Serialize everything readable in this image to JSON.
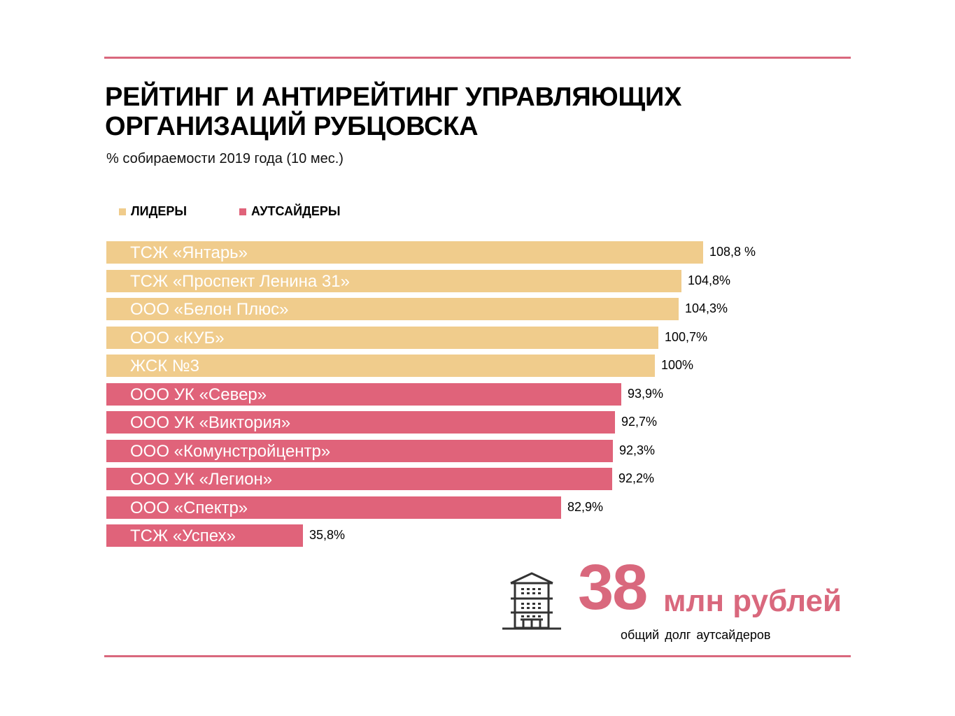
{
  "header": {
    "title_line1": "РЕЙТИНГ И АНТИРЕЙТИНГ УПРАВЛЯЮЩИХ",
    "title_line2": "ОРГАНИЗАЦИЙ РУБЦОВСКА",
    "subtitle": "% собираемости 2019 года (10 мес.)"
  },
  "colors": {
    "leaders": "#f0cc8c",
    "outsiders": "#e0637a",
    "accent": "#d9687d"
  },
  "legend": [
    {
      "label": "ЛИДЕРЫ",
      "group": "leaders"
    },
    {
      "label": "АУТСАЙДЕРЫ",
      "group": "outsiders"
    }
  ],
  "chart_data": {
    "type": "bar",
    "orientation": "horizontal",
    "title": "РЕЙТИНГ И АНТИРЕЙТИНГ УПРАВЛЯЮЩИХ ОРГАНИЗАЦИЙ РУБЦОВСКА",
    "subtitle": "% собираемости 2019 года (10 мес.)",
    "xlabel": "",
    "ylabel": "",
    "xlim": [
      0,
      108.8
    ],
    "grid": false,
    "legend_position": "top-left",
    "categories": [
      "ТСЖ «Янтарь»",
      "ТСЖ «Проспект Ленина 31»",
      "ООО «Белон Плюс»",
      "ООО «КУБ»",
      "ЖСК №3",
      "ООО УК «Север»",
      "ООО УК «Виктория»",
      "ООО «Комунстройцентр»",
      "ООО УК «Легион»",
      "ООО «Спектр»",
      "ТСЖ «Успех»"
    ],
    "values": [
      108.8,
      104.8,
      104.3,
      100.7,
      100,
      93.9,
      92.7,
      92.3,
      92.2,
      82.9,
      35.8
    ],
    "value_labels": [
      "108,8 %",
      "104,8%",
      "104,3%",
      "100,7%",
      "100%",
      "93,9%",
      "92,7%",
      "92,3%",
      "92,2%",
      "82,9%",
      "35,8%"
    ],
    "groups": [
      "leaders",
      "leaders",
      "leaders",
      "leaders",
      "leaders",
      "outsiders",
      "outsiders",
      "outsiders",
      "outsiders",
      "outsiders",
      "outsiders"
    ],
    "series": [
      {
        "name": "ЛИДЕРЫ",
        "indices": [
          0,
          1,
          2,
          3,
          4
        ]
      },
      {
        "name": "АУТСАЙДЕРЫ",
        "indices": [
          5,
          6,
          7,
          8,
          9,
          10
        ]
      }
    ]
  },
  "callout": {
    "number": "38",
    "unit": "млн рублей",
    "caption": "общий долг аутсайдеров",
    "icon": "building-icon"
  }
}
